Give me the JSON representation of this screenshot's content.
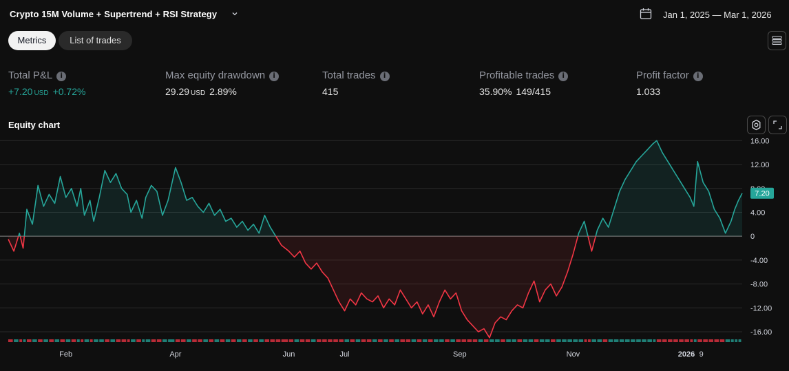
{
  "header": {
    "strategy_title": "Crypto 15M Volume + Supertrend + RSI Strategy",
    "date_range": "Jan 1, 2025 — Mar 1, 2026",
    "icons": {
      "dropdown": "chevron-down-icon",
      "calendar": "calendar-icon",
      "menu": "list-icon"
    }
  },
  "tabs": [
    {
      "label": "Metrics",
      "active": true
    },
    {
      "label": "List of trades",
      "active": false
    }
  ],
  "metrics": [
    {
      "label": "Total P&L",
      "value": "+7.20",
      "unit": "USD",
      "extra": "+0.72%",
      "color": "#26a69a"
    },
    {
      "label": "Max equity drawdown",
      "value": "29.29",
      "unit": "USD",
      "extra": "2.89%",
      "color": "#e6e6e6"
    },
    {
      "label": "Total trades",
      "value": "415",
      "unit": "",
      "extra": "",
      "color": "#e6e6e6"
    },
    {
      "label": "Profitable trades",
      "value": "35.90%",
      "unit": "",
      "extra": "149/415",
      "color": "#e6e6e6"
    },
    {
      "label": "Profit factor",
      "value": "1.033",
      "unit": "",
      "extra": "",
      "color": "#e6e6e6"
    }
  ],
  "equity_section": {
    "title": "Equity chart",
    "icons": {
      "settings": "settings-icon",
      "expand": "expand-icon"
    }
  },
  "chart_data": {
    "type": "line",
    "y_ticks": [
      "16.00",
      "12.00",
      "8.00",
      "4.00",
      "0",
      "-4.00",
      "-8.00",
      "-12.00",
      "-16.00"
    ],
    "ylim": [
      -17.5,
      16.5
    ],
    "x_tick_labels": [
      {
        "label": "Feb",
        "date": "2025-02-01"
      },
      {
        "label": "Apr",
        "date": "2025-04-01"
      },
      {
        "label": "Jun",
        "date": "2025-06-01"
      },
      {
        "label": "Jul",
        "date": "2025-07-01"
      },
      {
        "label": "Sep",
        "date": "2025-09-01"
      },
      {
        "label": "Nov",
        "date": "2025-11-01"
      },
      {
        "label": "2026",
        "date": "2026-01-01",
        "bold": true
      },
      {
        "label": "9",
        "date": "2026-01-09"
      }
    ],
    "last_value_label": "7.20",
    "positive_color": "#26a69a",
    "negative_color": "#f23645",
    "points": [
      [
        "2025-01-01",
        -0.5
      ],
      [
        "2025-01-04",
        -2.5
      ],
      [
        "2025-01-07",
        0.5
      ],
      [
        "2025-01-09",
        -2.0
      ],
      [
        "2025-01-11",
        4.5
      ],
      [
        "2025-01-14",
        2.0
      ],
      [
        "2025-01-17",
        8.5
      ],
      [
        "2025-01-20",
        5.0
      ],
      [
        "2025-01-23",
        7.0
      ],
      [
        "2025-01-26",
        5.5
      ],
      [
        "2025-01-29",
        10.0
      ],
      [
        "2025-02-01",
        6.5
      ],
      [
        "2025-02-04",
        8.0
      ],
      [
        "2025-02-07",
        5.0
      ],
      [
        "2025-02-09",
        8.0
      ],
      [
        "2025-02-11",
        3.5
      ],
      [
        "2025-02-14",
        6.0
      ],
      [
        "2025-02-16",
        2.5
      ],
      [
        "2025-02-19",
        6.5
      ],
      [
        "2025-02-22",
        11.0
      ],
      [
        "2025-02-25",
        9.0
      ],
      [
        "2025-02-28",
        10.5
      ],
      [
        "2025-03-03",
        8.0
      ],
      [
        "2025-03-06",
        7.0
      ],
      [
        "2025-03-08",
        4.0
      ],
      [
        "2025-03-11",
        6.0
      ],
      [
        "2025-03-14",
        3.0
      ],
      [
        "2025-03-16",
        6.5
      ],
      [
        "2025-03-19",
        8.5
      ],
      [
        "2025-03-22",
        7.5
      ],
      [
        "2025-03-25",
        3.5
      ],
      [
        "2025-03-28",
        6.0
      ],
      [
        "2025-04-01",
        11.5
      ],
      [
        "2025-04-04",
        9.0
      ],
      [
        "2025-04-07",
        6.0
      ],
      [
        "2025-04-10",
        6.5
      ],
      [
        "2025-04-13",
        5.0
      ],
      [
        "2025-04-16",
        4.0
      ],
      [
        "2025-04-19",
        5.5
      ],
      [
        "2025-04-22",
        3.5
      ],
      [
        "2025-04-25",
        4.5
      ],
      [
        "2025-04-28",
        2.5
      ],
      [
        "2025-05-01",
        3.0
      ],
      [
        "2025-05-04",
        1.5
      ],
      [
        "2025-05-07",
        2.5
      ],
      [
        "2025-05-10",
        1.0
      ],
      [
        "2025-05-13",
        2.0
      ],
      [
        "2025-05-16",
        0.5
      ],
      [
        "2025-05-19",
        3.5
      ],
      [
        "2025-05-22",
        1.5
      ],
      [
        "2025-05-25",
        0.0
      ],
      [
        "2025-05-28",
        -1.5
      ],
      [
        "2025-06-01",
        -2.5
      ],
      [
        "2025-06-04",
        -3.5
      ],
      [
        "2025-06-07",
        -2.5
      ],
      [
        "2025-06-10",
        -4.5
      ],
      [
        "2025-06-13",
        -5.5
      ],
      [
        "2025-06-16",
        -4.5
      ],
      [
        "2025-06-19",
        -6.0
      ],
      [
        "2025-06-22",
        -7.0
      ],
      [
        "2025-06-25",
        -9.0
      ],
      [
        "2025-06-28",
        -11.0
      ],
      [
        "2025-07-01",
        -12.5
      ],
      [
        "2025-07-04",
        -10.5
      ],
      [
        "2025-07-07",
        -11.5
      ],
      [
        "2025-07-10",
        -9.5
      ],
      [
        "2025-07-13",
        -10.5
      ],
      [
        "2025-07-16",
        -11.0
      ],
      [
        "2025-07-19",
        -10.0
      ],
      [
        "2025-07-22",
        -12.0
      ],
      [
        "2025-07-25",
        -10.5
      ],
      [
        "2025-07-28",
        -11.5
      ],
      [
        "2025-07-31",
        -9.0
      ],
      [
        "2025-08-03",
        -10.5
      ],
      [
        "2025-08-06",
        -12.0
      ],
      [
        "2025-08-09",
        -11.0
      ],
      [
        "2025-08-12",
        -13.0
      ],
      [
        "2025-08-15",
        -11.5
      ],
      [
        "2025-08-18",
        -13.5
      ],
      [
        "2025-08-21",
        -11.0
      ],
      [
        "2025-08-24",
        -9.0
      ],
      [
        "2025-08-27",
        -10.5
      ],
      [
        "2025-08-30",
        -9.5
      ],
      [
        "2025-09-02",
        -12.5
      ],
      [
        "2025-09-05",
        -14.0
      ],
      [
        "2025-09-08",
        -15.0
      ],
      [
        "2025-09-11",
        -16.0
      ],
      [
        "2025-09-14",
        -15.5
      ],
      [
        "2025-09-17",
        -17.0
      ],
      [
        "2025-09-20",
        -14.5
      ],
      [
        "2025-09-23",
        -13.5
      ],
      [
        "2025-09-26",
        -14.0
      ],
      [
        "2025-09-29",
        -12.5
      ],
      [
        "2025-10-02",
        -11.5
      ],
      [
        "2025-10-05",
        -12.0
      ],
      [
        "2025-10-08",
        -9.5
      ],
      [
        "2025-10-11",
        -7.5
      ],
      [
        "2025-10-14",
        -11.0
      ],
      [
        "2025-10-17",
        -9.0
      ],
      [
        "2025-10-20",
        -8.0
      ],
      [
        "2025-10-23",
        -10.0
      ],
      [
        "2025-10-26",
        -8.5
      ],
      [
        "2025-10-29",
        -6.0
      ],
      [
        "2025-11-01",
        -3.0
      ],
      [
        "2025-11-04",
        0.5
      ],
      [
        "2025-11-07",
        2.5
      ],
      [
        "2025-11-09",
        0.0
      ],
      [
        "2025-11-11",
        -2.5
      ],
      [
        "2025-11-14",
        1.0
      ],
      [
        "2025-11-17",
        3.0
      ],
      [
        "2025-11-20",
        1.5
      ],
      [
        "2025-11-23",
        4.5
      ],
      [
        "2025-11-26",
        7.5
      ],
      [
        "2025-11-29",
        9.5
      ],
      [
        "2025-12-02",
        11.0
      ],
      [
        "2025-12-05",
        12.5
      ],
      [
        "2025-12-08",
        13.5
      ],
      [
        "2025-12-11",
        14.5
      ],
      [
        "2025-12-14",
        15.5
      ],
      [
        "2025-12-16",
        16.0
      ],
      [
        "2025-12-19",
        14.0
      ],
      [
        "2025-12-22",
        12.5
      ],
      [
        "2025-12-25",
        11.0
      ],
      [
        "2025-12-28",
        9.5
      ],
      [
        "2025-12-31",
        8.0
      ],
      [
        "2026-01-03",
        6.5
      ],
      [
        "2026-01-05",
        5.0
      ],
      [
        "2026-01-07",
        12.5
      ],
      [
        "2026-01-10",
        9.0
      ],
      [
        "2026-01-13",
        7.5
      ],
      [
        "2026-01-16",
        4.5
      ],
      [
        "2026-01-19",
        3.0
      ],
      [
        "2026-01-22",
        0.5
      ],
      [
        "2026-01-25",
        2.5
      ],
      [
        "2026-01-27",
        4.5
      ],
      [
        "2026-01-29",
        6.0
      ],
      [
        "2026-01-31",
        7.2
      ]
    ]
  }
}
